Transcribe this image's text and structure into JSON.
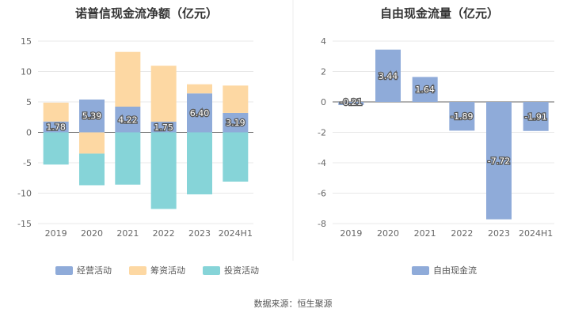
{
  "colors": {
    "operating": "#8fabd9",
    "financing": "#fdd8a3",
    "investing": "#86d4d8",
    "free_cash_flow": "#8fabd9"
  },
  "source": "数据来源：恒生聚源",
  "chart_data": [
    {
      "type": "bar",
      "stacked": true,
      "title": "诺普信现金流净额（亿元）",
      "categories": [
        "2019",
        "2020",
        "2021",
        "2022",
        "2023",
        "2024H1"
      ],
      "series": [
        {
          "name": "经营活动",
          "color_key": "operating",
          "values": [
            1.78,
            5.39,
            4.22,
            1.75,
            6.4,
            3.19
          ],
          "labels": [
            "1.78",
            "5.39",
            "4.22",
            "1.75",
            "6.40",
            "3.19"
          ]
        },
        {
          "name": "筹资活动",
          "color_key": "financing",
          "values": [
            3.1,
            -3.5,
            9.0,
            9.2,
            1.5,
            4.5
          ]
        },
        {
          "name": "投资活动",
          "color_key": "investing",
          "values": [
            -5.3,
            -5.2,
            -8.6,
            -12.6,
            -10.2,
            -8.1
          ]
        }
      ],
      "ylim": [
        -15,
        15
      ],
      "yticks": [
        "15",
        "10",
        "5",
        "0",
        "-5",
        "-10",
        "-15"
      ],
      "grid": true,
      "legend_position": "bottom"
    },
    {
      "type": "bar",
      "title": "自由现金流量（亿元）",
      "categories": [
        "2019",
        "2020",
        "2021",
        "2022",
        "2023",
        "2024H1"
      ],
      "series": [
        {
          "name": "自由现金流",
          "color_key": "free_cash_flow",
          "values": [
            -0.21,
            3.44,
            1.64,
            -1.89,
            -7.72,
            -1.91
          ],
          "labels": [
            "-0.21",
            "3.44",
            "1.64",
            "-1.89",
            "-7.72",
            "-1.91"
          ]
        }
      ],
      "ylim": [
        -8,
        4
      ],
      "yticks": [
        "4",
        "2",
        "0",
        "-2",
        "-4",
        "-6",
        "-8"
      ],
      "grid": true,
      "legend_position": "bottom"
    }
  ]
}
